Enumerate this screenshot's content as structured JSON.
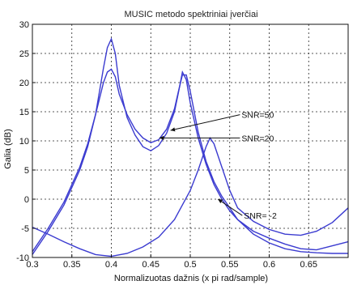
{
  "chart_data": {
    "type": "line",
    "title": "MUSIC metodo spektriniai įverčiai",
    "xlabel": "Normalizuotas dažnis (x pi rad/sample)",
    "ylabel": "Galia (dB)",
    "xlim": [
      0.3,
      0.7
    ],
    "ylim": [
      -10,
      30
    ],
    "xticks": [
      0.3,
      0.35,
      0.4,
      0.45,
      0.5,
      0.55,
      0.6,
      0.65
    ],
    "yticks": [
      -10,
      -5,
      0,
      5,
      10,
      15,
      20,
      25,
      30
    ],
    "grid": true,
    "colors": {
      "series": "#3b3bd0",
      "grid": "#222222",
      "axes": "#111111"
    },
    "series": [
      {
        "x": [
          0.3,
          0.32,
          0.34,
          0.36,
          0.37,
          0.38,
          0.39,
          0.395,
          0.4,
          0.405,
          0.41,
          0.42,
          0.43,
          0.44,
          0.45,
          0.46,
          0.47,
          0.48,
          0.485,
          0.49,
          0.495,
          0.5,
          0.51,
          0.52,
          0.53,
          0.54,
          0.55,
          0.56,
          0.58,
          0.6,
          0.62,
          0.64,
          0.66,
          0.68,
          0.7
        ],
        "y": [
          -9.5,
          -5.5,
          -1.0,
          5.0,
          9.0,
          14.5,
          22.5,
          26.0,
          27.5,
          25.0,
          19.5,
          14.0,
          11.0,
          9.0,
          8.3,
          9.2,
          11.3,
          15.0,
          18.3,
          21.8,
          20.5,
          16.5,
          10.5,
          6.0,
          2.5,
          0.0,
          -2.0,
          -3.5,
          -5.5,
          -6.7,
          -7.7,
          -8.5,
          -8.7,
          -8.0,
          -7.3
        ]
      },
      {
        "x": [
          0.3,
          0.32,
          0.34,
          0.36,
          0.37,
          0.38,
          0.39,
          0.395,
          0.4,
          0.405,
          0.41,
          0.42,
          0.43,
          0.44,
          0.45,
          0.46,
          0.47,
          0.48,
          0.485,
          0.49,
          0.495,
          0.5,
          0.51,
          0.52,
          0.53,
          0.54,
          0.55,
          0.56,
          0.58,
          0.6,
          0.62,
          0.64,
          0.66,
          0.68,
          0.7
        ],
        "y": [
          -9.0,
          -5.0,
          -0.5,
          5.5,
          9.5,
          14.5,
          20.0,
          21.8,
          22.3,
          21.0,
          18.0,
          14.5,
          12.0,
          10.5,
          9.7,
          10.2,
          12.0,
          15.5,
          18.5,
          21.3,
          21.3,
          18.5,
          11.5,
          6.5,
          3.0,
          0.5,
          -1.5,
          -3.5,
          -6.0,
          -7.5,
          -8.5,
          -9.0,
          -9.2,
          -9.3,
          -9.3
        ]
      },
      {
        "x": [
          0.3,
          0.32,
          0.34,
          0.36,
          0.38,
          0.4,
          0.42,
          0.44,
          0.46,
          0.48,
          0.5,
          0.51,
          0.52,
          0.525,
          0.53,
          0.54,
          0.55,
          0.56,
          0.58,
          0.6,
          0.62,
          0.64,
          0.66,
          0.68,
          0.7
        ],
        "y": [
          -4.8,
          -6.0,
          -7.3,
          -8.5,
          -9.5,
          -9.8,
          -9.3,
          -8.2,
          -6.5,
          -3.5,
          1.5,
          5.0,
          9.0,
          10.5,
          9.5,
          5.5,
          1.5,
          -1.5,
          -3.8,
          -5.2,
          -6.0,
          -6.2,
          -5.5,
          -4.0,
          -1.5
        ]
      }
    ],
    "annotations": [
      {
        "text": "SNR=50",
        "label_at": [
          0.565,
          14.5
        ],
        "arrow_to": [
          0.475,
          11.8
        ]
      },
      {
        "text": "SNR=20",
        "label_at": [
          0.565,
          10.5
        ],
        "arrow_to": [
          0.461,
          10.5
        ]
      },
      {
        "text": "SNR= -2",
        "label_at": [
          0.568,
          -2.8
        ],
        "arrow_to": [
          0.535,
          0.0
        ]
      }
    ]
  }
}
